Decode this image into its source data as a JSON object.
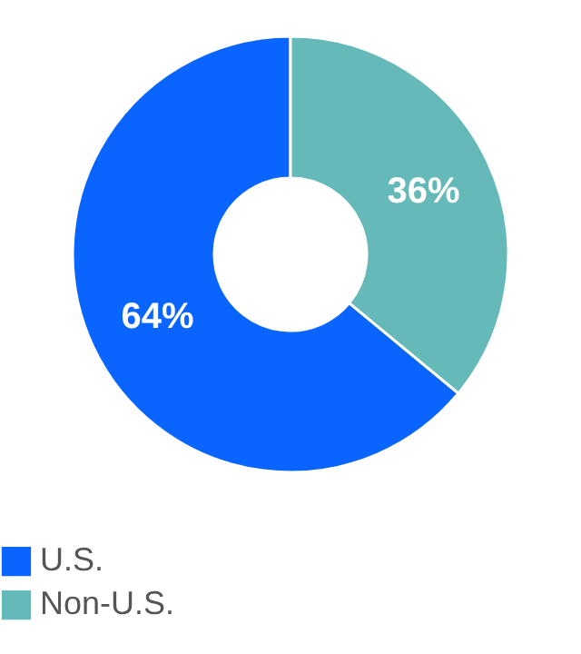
{
  "chart_data": {
    "type": "donut",
    "categories": [
      "U.S.",
      "Non-U.S."
    ],
    "values": [
      64,
      36
    ],
    "colors": [
      "#0a64ff",
      "#66b9b9"
    ],
    "value_labels": [
      "64%",
      "36%"
    ],
    "legend": "bottom"
  }
}
